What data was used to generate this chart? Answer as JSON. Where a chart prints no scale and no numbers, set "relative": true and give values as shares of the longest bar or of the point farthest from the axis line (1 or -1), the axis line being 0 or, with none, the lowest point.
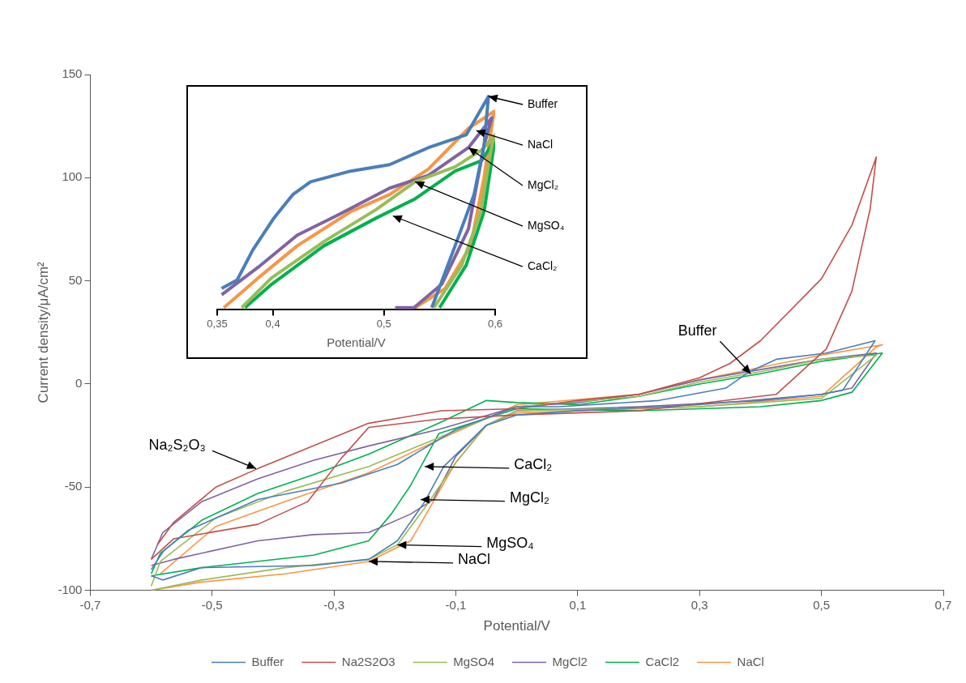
{
  "chart_data": [
    {
      "type": "line",
      "xlabel": "Potential/V",
      "ylabel": "Current density/μA/cm²",
      "xlim": [
        -0.7,
        0.7
      ],
      "xticks": [
        {
          "value": -0.7,
          "label": "-0,7"
        },
        {
          "value": -0.5,
          "label": "-0,5"
        },
        {
          "value": -0.3,
          "label": "-0,3"
        },
        {
          "value": -0.1,
          "label": "-0,1"
        },
        {
          "value": 0.1,
          "label": "0,1"
        },
        {
          "value": 0.3,
          "label": "0,3"
        },
        {
          "value": 0.5,
          "label": "0,5"
        },
        {
          "value": 0.7,
          "label": "0,7"
        }
      ],
      "ylim": [
        -100,
        150
      ],
      "yticks": [
        -100,
        -50,
        0,
        50,
        100,
        150
      ],
      "legend": "bottom",
      "marker": "none",
      "series": [
        {
          "name": "Buffer",
          "color": "#4a7ebb",
          "x": [
            -0.6,
            -0.581,
            -0.517,
            -0.334,
            -0.243,
            -0.196,
            -0.151,
            -0.12,
            -0.05,
            0,
            0.1,
            0.3,
            0.5,
            0.535,
            0.588,
            0.508,
            0.426,
            0.382,
            0.343,
            0.233,
            0.069,
            0,
            -0.1,
            -0.196,
            -0.288,
            -0.425,
            -0.54,
            -0.58,
            -0.6
          ],
          "values": [
            -93,
            -95,
            -89,
            -88,
            -85,
            -76,
            -57,
            -40,
            -20,
            -15,
            -13,
            -10,
            -5,
            -3,
            21,
            15,
            12,
            6,
            -2,
            -8,
            -11,
            -11,
            -22,
            -39,
            -48,
            -56,
            -71,
            -81,
            -90
          ]
        },
        {
          "name": "Na2S2O3",
          "color": "#c0504d",
          "x": [
            -0.6,
            -0.563,
            -0.425,
            -0.343,
            -0.288,
            -0.243,
            -0.128,
            0,
            0.2,
            0.426,
            0.508,
            0.55,
            0.58,
            0.59,
            0.55,
            0.5,
            0.4,
            0.35,
            0.3,
            0.2,
            0.1,
            0,
            -0.124,
            -0.243,
            -0.334,
            -0.425,
            -0.494,
            -0.563,
            -0.59
          ],
          "values": [
            -85,
            -75,
            -68,
            -57,
            -36,
            -21,
            -17,
            -15,
            -13,
            -5,
            17,
            45,
            85,
            110,
            77,
            51,
            21,
            10,
            3,
            -5,
            -8,
            -12,
            -13,
            -19,
            -30,
            -41,
            -50,
            -67,
            -78
          ]
        },
        {
          "name": "MgSO4",
          "color": "#9bbb59",
          "x": [
            -0.6,
            -0.517,
            -0.38,
            -0.243,
            -0.196,
            -0.151,
            -0.1,
            -0.05,
            0,
            0.3,
            0.5,
            0.59,
            0.5,
            0.4,
            0.3,
            0.2,
            0,
            -0.128,
            -0.243,
            -0.38,
            -0.494,
            -0.585,
            -0.6
          ],
          "values": [
            -100,
            -95,
            -89,
            -85,
            -78,
            -60,
            -38,
            -20,
            -13,
            -11,
            -7,
            14,
            12,
            6,
            1,
            -6,
            -11,
            -26,
            -40,
            -52,
            -65,
            -86,
            -98
          ]
        },
        {
          "name": "MgCl2",
          "color": "#8064a2",
          "x": [
            -0.6,
            -0.563,
            -0.425,
            -0.334,
            -0.243,
            -0.174,
            -0.137,
            -0.1,
            -0.05,
            0,
            0.2,
            0.4,
            0.5,
            0.55,
            0.59,
            0.5,
            0.4,
            0.3,
            0.2,
            0.1,
            0,
            -0.128,
            -0.243,
            -0.334,
            -0.425,
            -0.517,
            -0.581,
            -0.6
          ],
          "values": [
            -88,
            -85,
            -76,
            -73,
            -72,
            -63,
            -56,
            -35,
            -20,
            -13,
            -11,
            -8,
            -5,
            -2,
            15,
            12,
            7,
            2,
            -5,
            -9,
            -11,
            -22,
            -30,
            -37,
            -46,
            -57,
            -72,
            -85
          ]
        },
        {
          "name": "CaCl2",
          "color": "#00b050",
          "x": [
            -0.6,
            -0.517,
            -0.334,
            -0.243,
            -0.206,
            -0.174,
            -0.128,
            0,
            0.2,
            0.4,
            0.5,
            0.55,
            0.6,
            0.5,
            0.4,
            0.3,
            0.2,
            0.1,
            0,
            -0.05,
            -0.128,
            -0.243,
            -0.334,
            -0.425,
            -0.517,
            -0.585,
            -0.6
          ],
          "values": [
            -93,
            -89,
            -83,
            -76,
            -63,
            -49,
            -24,
            -12,
            -13,
            -11,
            -8,
            -4,
            15,
            11,
            5,
            0,
            -6,
            -10,
            -9,
            -8,
            -19,
            -34,
            -44,
            -53,
            -66,
            -82,
            -92
          ]
        },
        {
          "name": "NaCl",
          "color": "#f79646",
          "x": [
            -0.6,
            -0.517,
            -0.38,
            -0.243,
            -0.174,
            -0.137,
            -0.1,
            -0.05,
            0,
            0.3,
            0.5,
            0.59,
            0.6,
            0.5,
            0.4,
            0.3,
            0.2,
            0,
            -0.128,
            -0.243,
            -0.38,
            -0.494,
            -0.585
          ],
          "values": [
            -100,
            -96,
            -92,
            -86,
            -76,
            -57,
            -38,
            -20,
            -14,
            -11,
            -6,
            18,
            19,
            14,
            8,
            2,
            -5,
            -10,
            -27,
            -43,
            -57,
            -69,
            -92
          ]
        }
      ],
      "annotations": [
        {
          "text": "Buffer",
          "x": 0.384,
          "y": 5
        },
        {
          "text": "Na₂S₂O₃",
          "x": -0.428,
          "y": -41
        },
        {
          "text": "CaCl₂",
          "x": -0.151,
          "y": -40
        },
        {
          "text": "MgCl₂",
          "x": -0.158,
          "y": -56
        },
        {
          "text": "MgSO₄",
          "x": -0.196,
          "y": -78
        },
        {
          "text": "NaCl",
          "x": -0.243,
          "y": -86
        }
      ]
    },
    {
      "type": "line",
      "relative": true,
      "xlabel": "Potential/V",
      "xlim": [
        0.35,
        0.6
      ],
      "xticks": [
        {
          "value": 0.35,
          "label": "0,35"
        },
        {
          "value": 0.4,
          "label": "0,4"
        },
        {
          "value": 0.5,
          "label": "0,5"
        },
        {
          "value": 0.6,
          "label": "0,6"
        }
      ],
      "marker": "none",
      "series": [
        {
          "color": "#4a7ebb",
          "x": [
            0.543,
            0.564,
            0.581,
            0.59,
            0.594,
            0.574,
            0.54,
            0.505,
            0.47,
            0.434,
            0.418,
            0.401,
            0.382,
            0.368,
            0.354
          ],
          "values": [
            0.01,
            0.3,
            0.54,
            0.77,
            1,
            0.82,
            0.76,
            0.68,
            0.65,
            0.6,
            0.54,
            0.43,
            0.28,
            0.14,
            0.1
          ]
        },
        {
          "color": "#9bbb59",
          "x": [
            0.545,
            0.57,
            0.587,
            0.597,
            0.6,
            0.588,
            0.564,
            0.528,
            0.493,
            0.446,
            0.399,
            0.372
          ],
          "values": [
            0.01,
            0.21,
            0.46,
            0.77,
            0.82,
            0.75,
            0.67,
            0.6,
            0.47,
            0.32,
            0.15,
            0.01
          ]
        },
        {
          "color": "#8064a2",
          "x": [
            0.51,
            0.527,
            0.552,
            0.576,
            0.59,
            0.597,
            0.576,
            0.54,
            0.505,
            0.457,
            0.422,
            0.387,
            0.354
          ],
          "values": [
            0.01,
            0.01,
            0.12,
            0.38,
            0.77,
            0.9,
            0.76,
            0.63,
            0.57,
            0.44,
            0.35,
            0.2,
            0.07
          ]
        },
        {
          "color": "#00b050",
          "x": [
            0.55,
            0.574,
            0.59,
            0.599,
            0.6,
            0.588,
            0.564,
            0.528,
            0.493,
            0.446,
            0.399,
            0.375
          ],
          "values": [
            0.01,
            0.21,
            0.46,
            0.77,
            0.8,
            0.7,
            0.65,
            0.52,
            0.43,
            0.3,
            0.12,
            0.01
          ]
        },
        {
          "color": "#f79646",
          "x": [
            0.528,
            0.555,
            0.578,
            0.59,
            0.599,
            0.576,
            0.54,
            0.505,
            0.47,
            0.422,
            0.387,
            0.356
          ],
          "values": [
            0.01,
            0.1,
            0.3,
            0.62,
            0.93,
            0.85,
            0.66,
            0.54,
            0.46,
            0.3,
            0.15,
            0.01
          ]
        }
      ],
      "annotations": [
        {
          "text": "Buffer",
          "x": 0.594,
          "y": 1
        },
        {
          "text": "NaCl",
          "x": 0.583,
          "y": 0.84
        },
        {
          "text": "MgCl₂",
          "x": 0.576,
          "y": 0.76
        },
        {
          "text": "MgSO₄",
          "x": 0.528,
          "y": 0.6
        },
        {
          "text": "CaCl₂",
          "x": 0.508,
          "y": 0.44
        }
      ]
    }
  ]
}
